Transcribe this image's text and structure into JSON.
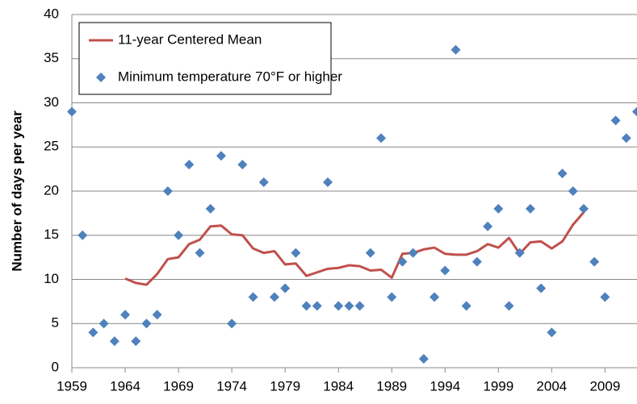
{
  "chart_data": {
    "type": "scatter",
    "y_label": "Number of days per year",
    "xlim": [
      1959,
      2012
    ],
    "ylim": [
      0,
      40
    ],
    "xticks": [
      1959,
      1964,
      1969,
      1974,
      1979,
      1984,
      1989,
      1994,
      1999,
      2004,
      2009
    ],
    "yticks": [
      0,
      5,
      10,
      15,
      20,
      25,
      30,
      35,
      40
    ],
    "grid": true,
    "legend": "top-left",
    "series": [
      {
        "name": "11-year Centered Mean",
        "type": "line",
        "color": "#c0504d",
        "x": [
          1964,
          1965,
          1966,
          1967,
          1968,
          1969,
          1970,
          1971,
          1972,
          1973,
          1974,
          1975,
          1976,
          1977,
          1978,
          1979,
          1980,
          1981,
          1982,
          1983,
          1984,
          1985,
          1986,
          1987,
          1988,
          1989,
          1990,
          1991,
          1992,
          1993,
          1994,
          1995,
          1996,
          1997,
          1998,
          1999,
          2000,
          2001,
          2002,
          2003,
          2004,
          2005,
          2006,
          2007
        ],
        "values": [
          10.1,
          9.6,
          9.4,
          10.6,
          12.3,
          12.5,
          14,
          14.5,
          16,
          16.1,
          15.1,
          15,
          13.5,
          13,
          13.2,
          11.7,
          11.8,
          10.4,
          10.8,
          11.2,
          11.3,
          11.6,
          11.5,
          11,
          11.1,
          10.2,
          12.9,
          13,
          13.4,
          13.6,
          12.9,
          12.8,
          12.8,
          13.2,
          14,
          13.6,
          14.7,
          12.9,
          14.2,
          14.3,
          13.5,
          14.3,
          16.2,
          17.6
        ]
      },
      {
        "name": "Minimum temperature 70°F or higher",
        "type": "scatter",
        "color": "#4f81bd",
        "x": [
          1959,
          1960,
          1961,
          1962,
          1963,
          1964,
          1965,
          1966,
          1967,
          1968,
          1969,
          1970,
          1971,
          1972,
          1973,
          1974,
          1975,
          1976,
          1977,
          1978,
          1979,
          1980,
          1981,
          1982,
          1983,
          1984,
          1985,
          1986,
          1987,
          1988,
          1989,
          1990,
          1991,
          1992,
          1993,
          1994,
          1995,
          1996,
          1997,
          1998,
          1999,
          2000,
          2001,
          2002,
          2003,
          2004,
          2005,
          2006,
          2007,
          2008,
          2009,
          2010,
          2011,
          2012
        ],
        "values": [
          29,
          15,
          4,
          5,
          3,
          6,
          3,
          5,
          6,
          20,
          15,
          23,
          13,
          18,
          24,
          5,
          23,
          8,
          21,
          8,
          9,
          13,
          7,
          7,
          21,
          7,
          7,
          7,
          13,
          26,
          8,
          12,
          13,
          1,
          8,
          11,
          36,
          7,
          12,
          16,
          18,
          7,
          13,
          18,
          9,
          4,
          22,
          20,
          18,
          12,
          8,
          28,
          26,
          29
        ]
      }
    ]
  }
}
